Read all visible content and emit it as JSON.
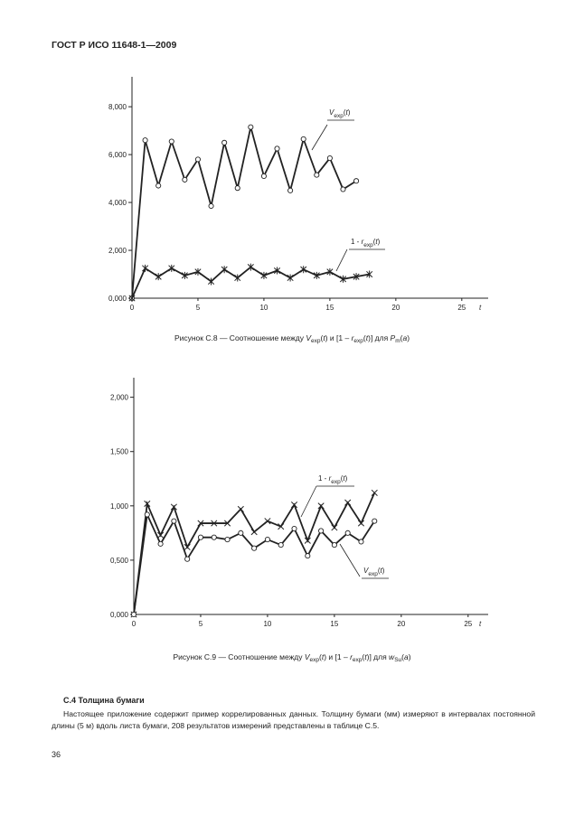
{
  "header": {
    "title": "ГОСТ Р ИСО 11648-1—2009"
  },
  "chart_data": [
    {
      "type": "line",
      "x_label": "t",
      "x": [
        0,
        1,
        2,
        3,
        4,
        5,
        6,
        7,
        8,
        9,
        10,
        11,
        12,
        13,
        14,
        15,
        16,
        17,
        18
      ],
      "xlim": [
        0,
        27
      ],
      "xticks": [
        0,
        5,
        10,
        15,
        20,
        25
      ],
      "ylim": [
        0,
        9.25
      ],
      "yticks": [
        {
          "value": 0,
          "label": "0,000"
        },
        {
          "value": 2,
          "label": "2,000"
        },
        {
          "value": 4,
          "label": "4,000"
        },
        {
          "value": 6,
          "label": "6,000"
        },
        {
          "value": 8,
          "label": "8,000"
        }
      ],
      "series": [
        {
          "name": [
            {
              "text": "V",
              "style": "italic"
            },
            {
              "text": "exp",
              "style": "sub"
            },
            {
              "text": "(",
              "style": "normal"
            },
            {
              "text": "t",
              "style": "italic"
            },
            {
              "text": ")",
              "style": "normal"
            }
          ],
          "color": "#222222",
          "marker": "circle",
          "values": [
            0,
            6.6,
            4.7,
            6.55,
            4.95,
            5.8,
            3.85,
            6.5,
            4.6,
            7.15,
            5.1,
            6.25,
            4.5,
            6.65,
            5.15,
            5.85,
            4.55,
            4.9,
            null
          ]
        },
        {
          "name": [
            {
              "text": "1 - ",
              "style": "normal"
            },
            {
              "text": "r",
              "style": "italic"
            },
            {
              "text": "exp",
              "style": "sub"
            },
            {
              "text": "(",
              "style": "normal"
            },
            {
              "text": "t",
              "style": "italic"
            },
            {
              "text": ")",
              "style": "normal"
            }
          ],
          "color": "#222222",
          "marker": "asterisk",
          "values": [
            0,
            1.25,
            0.9,
            1.25,
            0.95,
            1.1,
            0.7,
            1.2,
            0.85,
            1.3,
            0.95,
            1.15,
            0.85,
            1.2,
            0.95,
            1.1,
            0.8,
            0.9,
            1.0
          ]
        }
      ],
      "caption": [
        {
          "text": "Рисунок С.8 — Соотношение между ",
          "style": "normal"
        },
        {
          "text": "V",
          "style": "italic"
        },
        {
          "text": "exp",
          "style": "sub"
        },
        {
          "text": "(",
          "style": "normal"
        },
        {
          "text": "t",
          "style": "italic"
        },
        {
          "text": ") и [1 – ",
          "style": "normal"
        },
        {
          "text": "r",
          "style": "italic"
        },
        {
          "text": "exp",
          "style": "sub"
        },
        {
          "text": "(",
          "style": "normal"
        },
        {
          "text": "t",
          "style": "italic"
        },
        {
          "text": ")] для ",
          "style": "normal"
        },
        {
          "text": "P",
          "style": "italic"
        },
        {
          "text": "m",
          "style": "sub"
        },
        {
          "text": "(",
          "style": "normal"
        },
        {
          "text": "a",
          "style": "italic"
        },
        {
          "text": ")",
          "style": "normal"
        }
      ]
    },
    {
      "type": "line",
      "x_label": "t",
      "x": [
        0,
        1,
        2,
        3,
        4,
        5,
        6,
        7,
        8,
        9,
        10,
        11,
        12,
        13,
        14,
        15,
        16,
        17,
        18
      ],
      "xlim": [
        0,
        26.5
      ],
      "xticks": [
        0,
        5,
        10,
        15,
        20,
        25
      ],
      "ylim": [
        0,
        2.18
      ],
      "yticks": [
        {
          "value": 0,
          "label": "0,000"
        },
        {
          "value": 0.5,
          "label": "0,500"
        },
        {
          "value": 1,
          "label": "1,000"
        },
        {
          "value": 1.5,
          "label": "1,500"
        },
        {
          "value": 2,
          "label": "2,000"
        }
      ],
      "series": [
        {
          "name": [
            {
              "text": "1 - ",
              "style": "normal"
            },
            {
              "text": "r",
              "style": "italic"
            },
            {
              "text": "exp",
              "style": "sub"
            },
            {
              "text": "(",
              "style": "normal"
            },
            {
              "text": "t",
              "style": "italic"
            },
            {
              "text": ")",
              "style": "normal"
            }
          ],
          "color": "#222222",
          "marker": "cross",
          "values": [
            0,
            1.02,
            0.73,
            0.99,
            0.62,
            0.84,
            0.84,
            0.84,
            0.97,
            0.76,
            0.86,
            0.81,
            1.01,
            0.68,
            1.0,
            0.8,
            1.03,
            0.84,
            1.12
          ]
        },
        {
          "name": [
            {
              "text": "V",
              "style": "italic"
            },
            {
              "text": "exp",
              "style": "sub"
            },
            {
              "text": "(",
              "style": "normal"
            },
            {
              "text": "t",
              "style": "italic"
            },
            {
              "text": ")",
              "style": "normal"
            }
          ],
          "color": "#222222",
          "marker": "circle",
          "values": [
            0,
            0.92,
            0.65,
            0.86,
            0.51,
            0.71,
            0.71,
            0.69,
            0.75,
            0.61,
            0.69,
            0.64,
            0.79,
            0.54,
            0.77,
            0.64,
            0.75,
            0.67,
            0.86
          ]
        }
      ],
      "caption": [
        {
          "text": "Рисунок С.9 — Соотношение между ",
          "style": "normal"
        },
        {
          "text": "V",
          "style": "italic"
        },
        {
          "text": "exp",
          "style": "sub"
        },
        {
          "text": "(",
          "style": "normal"
        },
        {
          "text": "t",
          "style": "italic"
        },
        {
          "text": ") и [1 – ",
          "style": "normal"
        },
        {
          "text": "r",
          "style": "italic"
        },
        {
          "text": "exp",
          "style": "sub"
        },
        {
          "text": "(",
          "style": "normal"
        },
        {
          "text": "t",
          "style": "italic"
        },
        {
          "text": ")] для ",
          "style": "normal"
        },
        {
          "text": "w",
          "style": "italic"
        },
        {
          "text": "Su",
          "style": "sub"
        },
        {
          "text": "(",
          "style": "normal"
        },
        {
          "text": "a",
          "style": "italic"
        },
        {
          "text": ")",
          "style": "normal"
        }
      ]
    }
  ],
  "section": {
    "heading": "С.4 Толщина бумаги",
    "paragraph": "Настоящее приложение содержит пример коррелированных данных. Толщину бумаги (мм) измеряют в интервалах постоянной длины (5 м) вдоль листа бумаги, 208 результатов измерений представлены в таблице С.5."
  },
  "page_number": "36"
}
